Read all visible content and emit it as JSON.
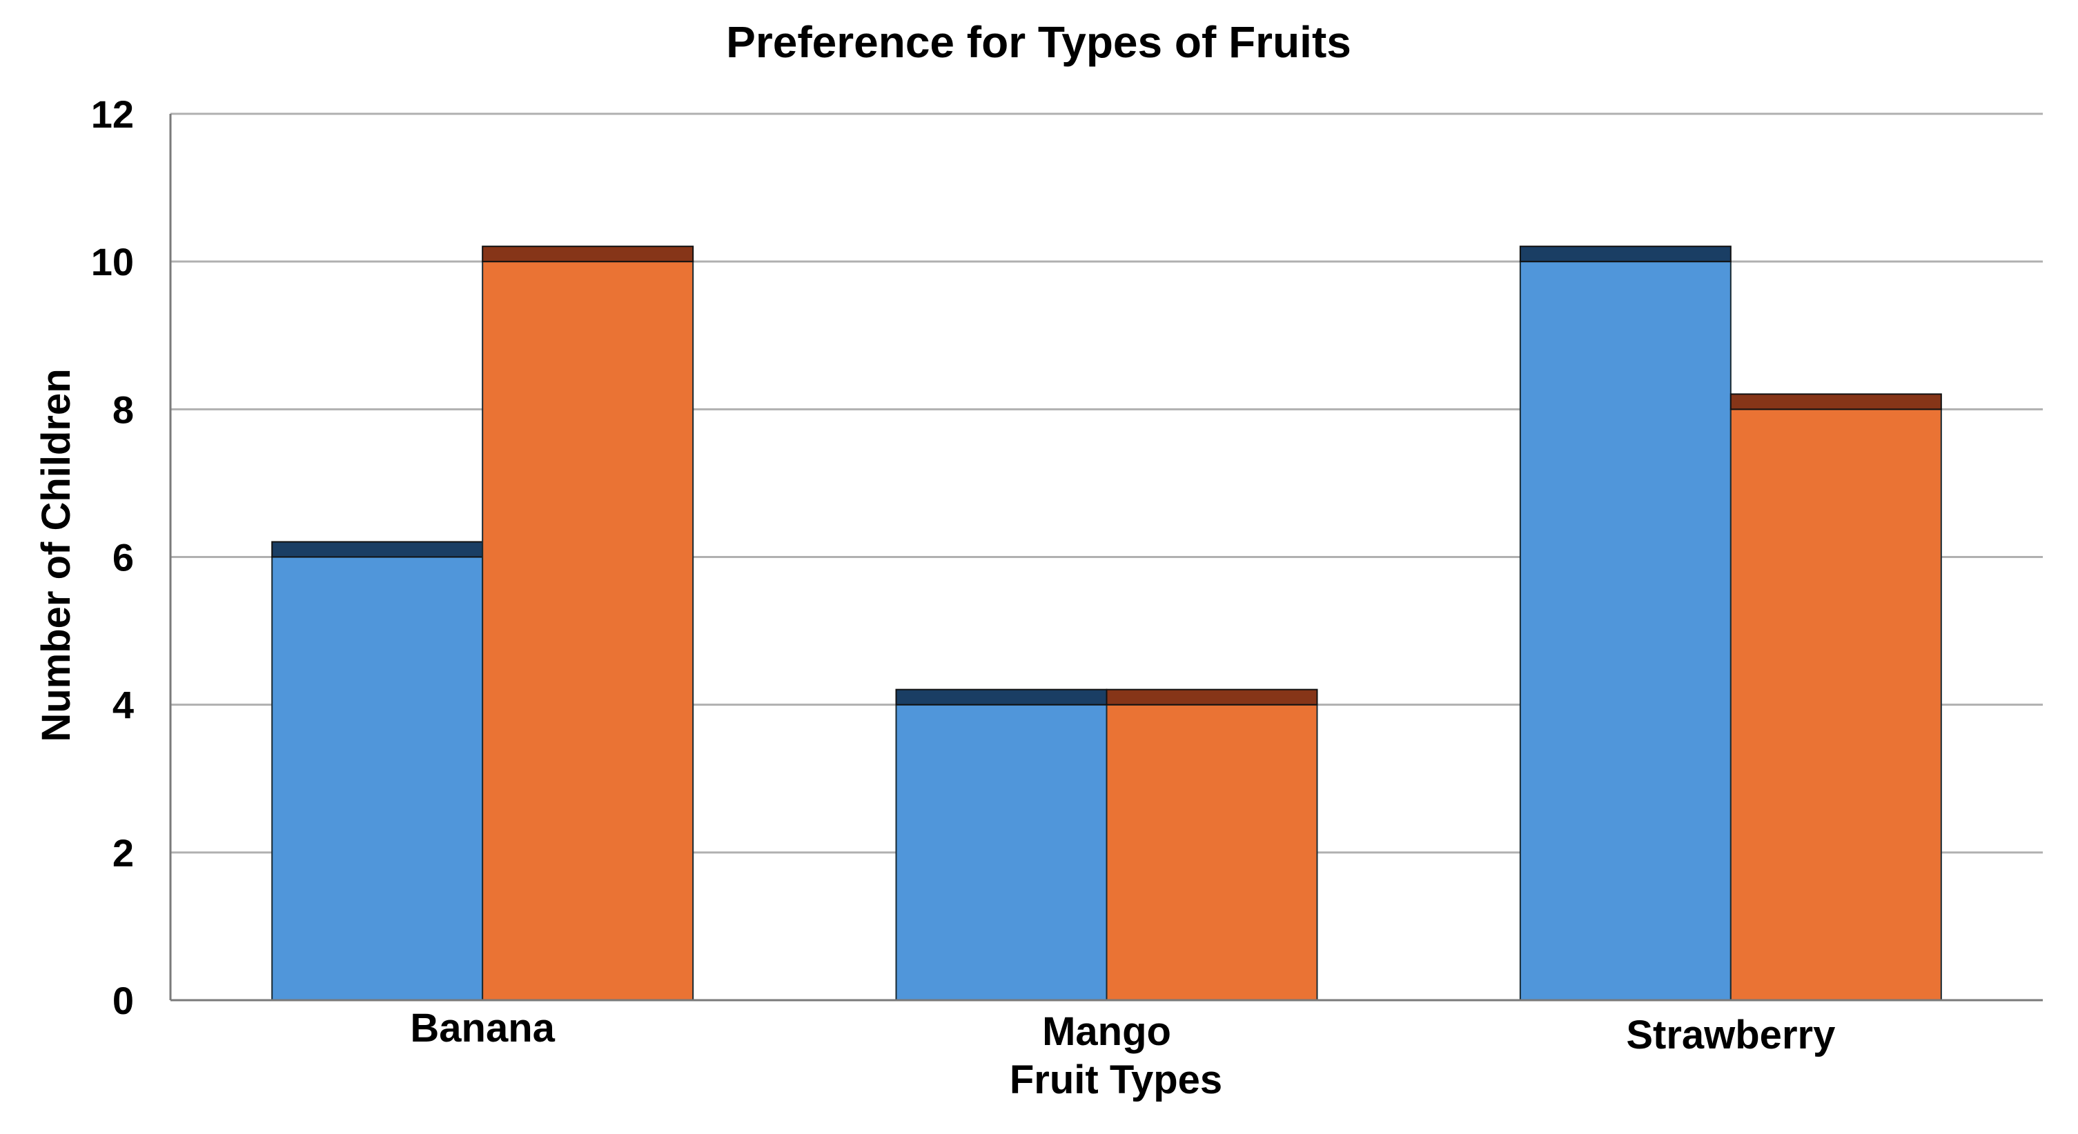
{
  "chart_data": {
    "type": "bar",
    "title": "Preference for Types of Fruits",
    "xlabel": "Fruit Types",
    "ylabel": "Number of Children",
    "categories": [
      "Banana",
      "Mango",
      "Strawberry"
    ],
    "series": [
      {
        "values": [
          6,
          4,
          10
        ],
        "color": "#5096DA",
        "cap_color": "#1A3E64"
      },
      {
        "values": [
          10,
          4,
          8
        ],
        "color": "#EA7334",
        "cap_color": "#863518"
      }
    ],
    "ylim": [
      0,
      12
    ],
    "yticks": [
      "0",
      "2",
      "4",
      "6",
      "8",
      "10",
      "12"
    ],
    "grid": true,
    "legend": "none"
  }
}
